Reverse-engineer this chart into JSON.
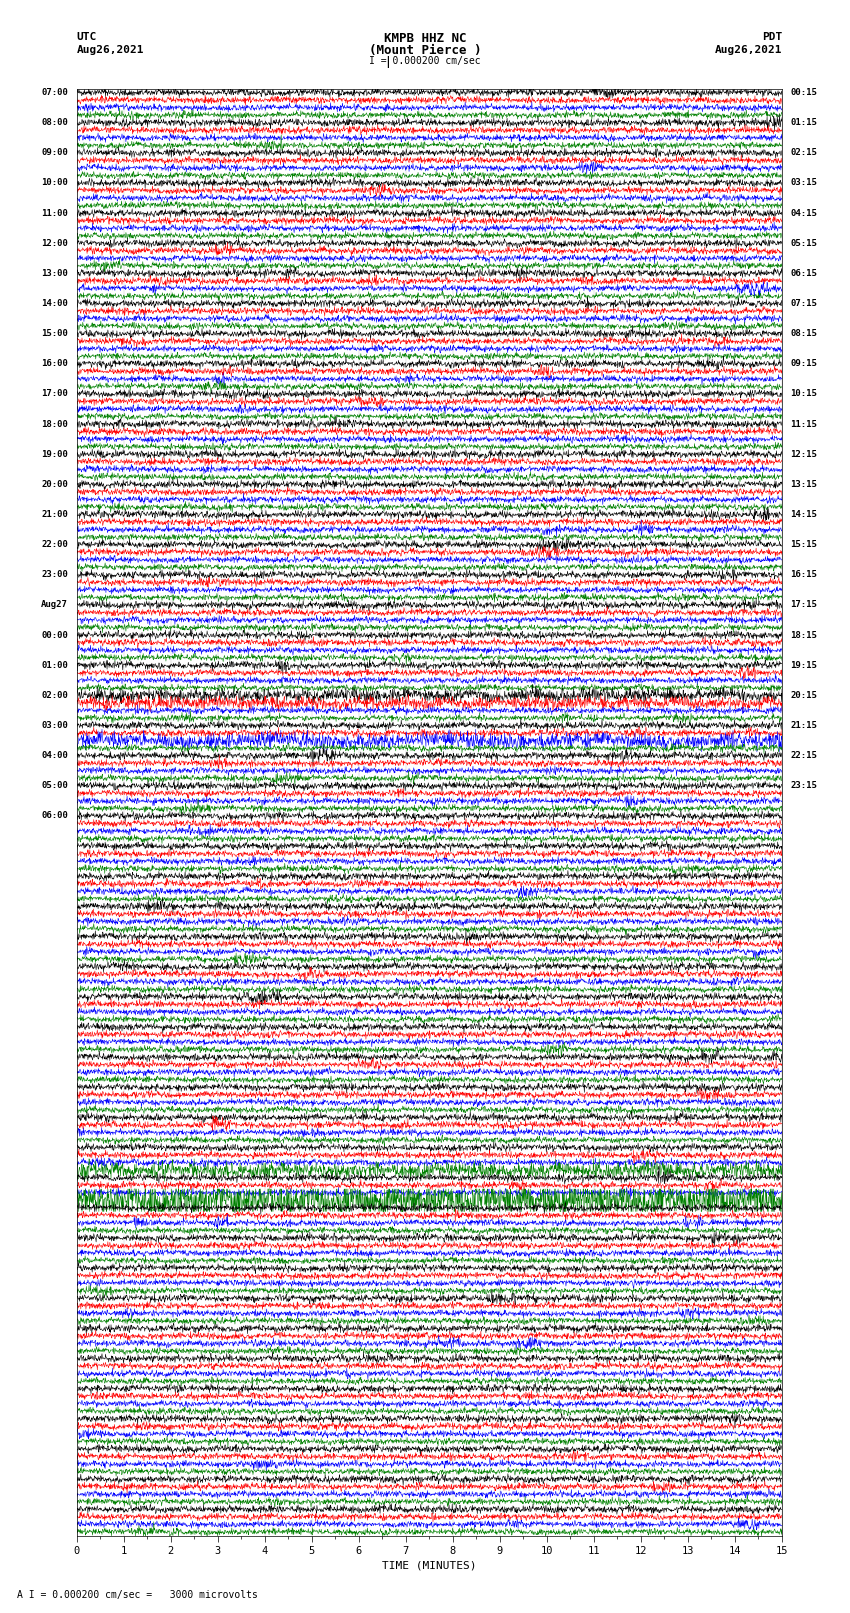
{
  "title_line1": "KMPB HHZ NC",
  "title_line2": "(Mount Pierce )",
  "left_header": "UTC",
  "left_date": "Aug26,2021",
  "right_header": "PDT",
  "right_date": "Aug26,2021",
  "scale_label": "I = 0.000200 cm/sec",
  "footer_label": "A I = 0.000200 cm/sec =   3000 microvolts",
  "xlabel": "TIME (MINUTES)",
  "xticks": [
    0,
    1,
    2,
    3,
    4,
    5,
    6,
    7,
    8,
    9,
    10,
    11,
    12,
    13,
    14,
    15
  ],
  "trace_colors": [
    "black",
    "red",
    "blue",
    "green"
  ],
  "n_groups": 48,
  "traces_per_group": 4,
  "minutes_per_trace": 15,
  "left_times": [
    "07:00",
    "08:00",
    "09:00",
    "10:00",
    "11:00",
    "12:00",
    "13:00",
    "14:00",
    "15:00",
    "16:00",
    "17:00",
    "18:00",
    "19:00",
    "20:00",
    "21:00",
    "22:00",
    "23:00",
    "Aug27",
    "00:00",
    "01:00",
    "02:00",
    "03:00",
    "04:00",
    "05:00",
    "06:00"
  ],
  "left_time_groups": [
    0,
    4,
    8,
    12,
    16,
    20,
    24,
    28,
    32,
    36,
    40,
    44,
    48,
    52,
    56,
    60,
    64,
    68,
    72,
    76,
    80,
    84,
    88,
    92,
    96
  ],
  "right_times": [
    "00:15",
    "01:15",
    "02:15",
    "03:15",
    "04:15",
    "05:15",
    "06:15",
    "07:15",
    "08:15",
    "09:15",
    "10:15",
    "11:15",
    "12:15",
    "13:15",
    "14:15",
    "15:15",
    "16:15",
    "17:15",
    "18:15",
    "19:15",
    "20:15",
    "21:15",
    "22:15",
    "23:15"
  ],
  "right_time_groups": [
    0,
    4,
    8,
    12,
    16,
    20,
    24,
    28,
    32,
    36,
    40,
    44,
    48,
    52,
    56,
    60,
    64,
    68,
    72,
    76,
    80,
    84,
    88,
    92
  ],
  "bg_color": "white",
  "trace_linewidth": 0.4,
  "figsize": [
    8.5,
    16.13
  ]
}
